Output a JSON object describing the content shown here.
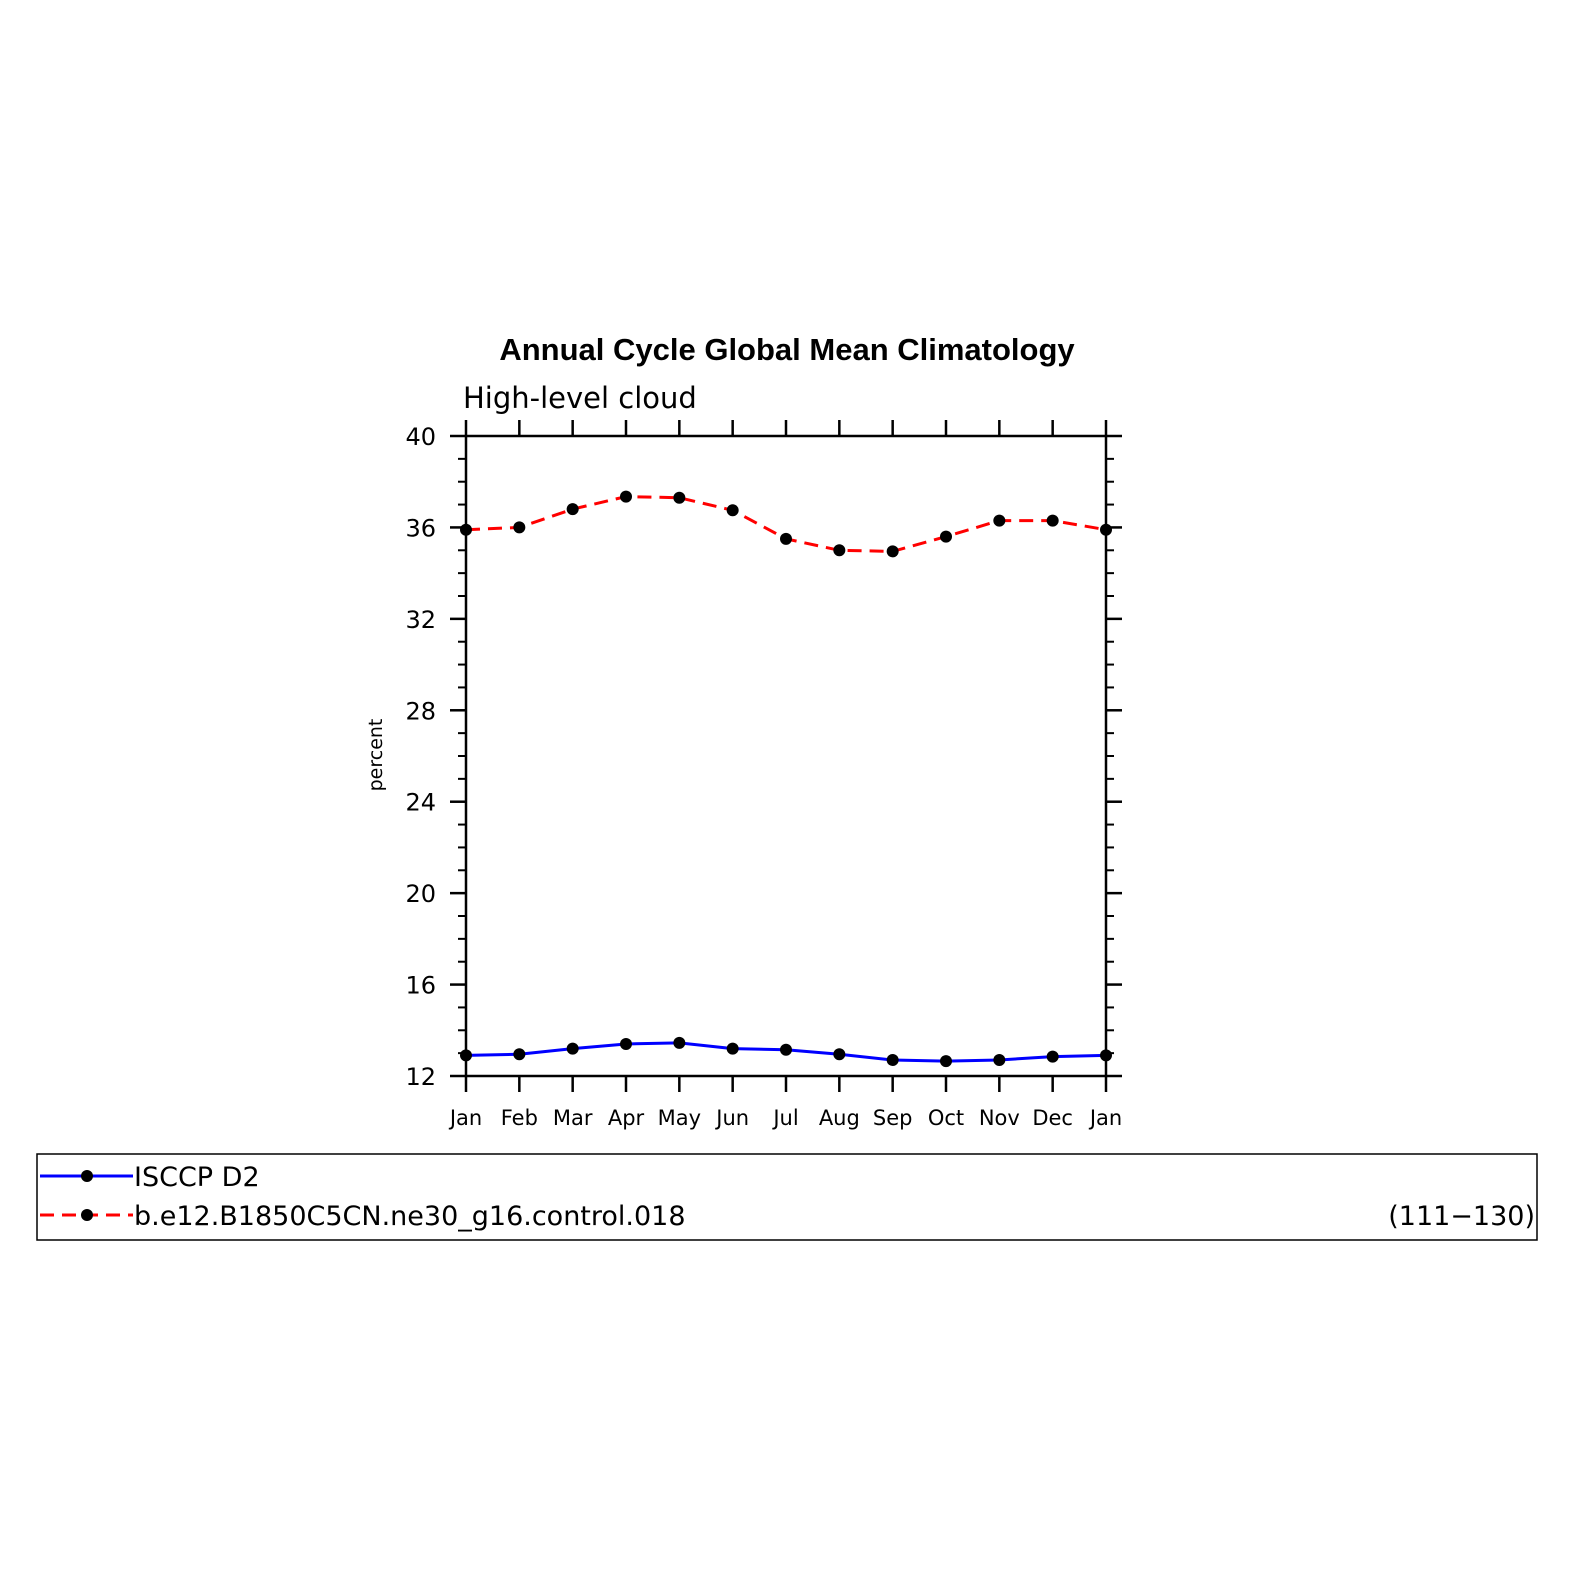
{
  "chart_data": {
    "type": "line",
    "title": "Annual Cycle Global Mean Climatology",
    "subtitle": "High-level cloud",
    "ylabel": "percent",
    "xlabel": "",
    "categories": [
      "Jan",
      "Feb",
      "Mar",
      "Apr",
      "May",
      "Jun",
      "Jul",
      "Aug",
      "Sep",
      "Oct",
      "Nov",
      "Dec",
      "Jan"
    ],
    "ylim": [
      12,
      40
    ],
    "yticks": [
      12,
      16,
      20,
      24,
      28,
      32,
      36,
      40
    ],
    "yminor_step": 1,
    "series": [
      {
        "name": "ISCCP D2",
        "color": "#0000ff",
        "dash": "solid",
        "marker": "circle",
        "values": [
          12.9,
          12.95,
          13.2,
          13.4,
          13.45,
          13.2,
          13.15,
          12.95,
          12.7,
          12.65,
          12.7,
          12.85,
          12.9
        ]
      },
      {
        "name": "b.e12.B1850C5CN.ne30_g16.control.018",
        "annotation": "(111−130)",
        "color": "#ff0000",
        "dash": "dashed",
        "marker": "circle",
        "values": [
          35.9,
          36.0,
          36.8,
          37.35,
          37.3,
          36.75,
          35.5,
          35.0,
          34.95,
          35.6,
          36.3,
          36.3,
          35.9
        ]
      }
    ],
    "grid": false,
    "legend_position": "bottom"
  }
}
